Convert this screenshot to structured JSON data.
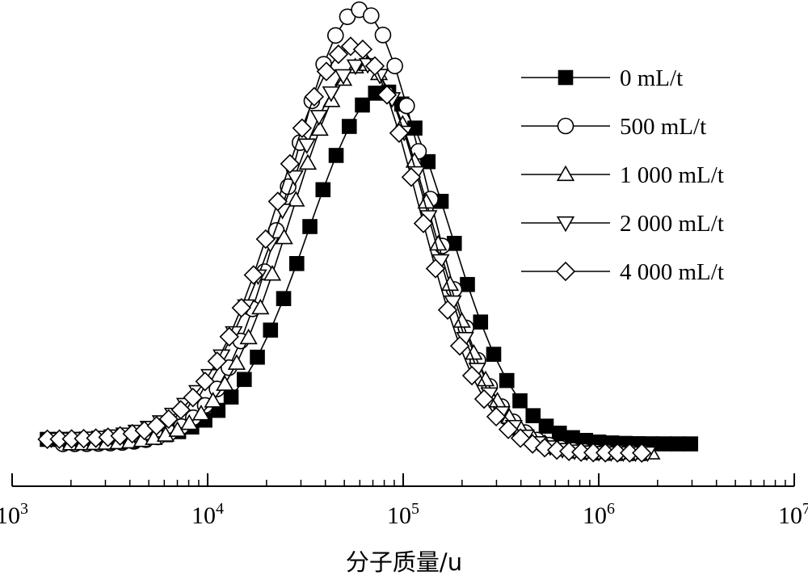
{
  "chart_data": {
    "type": "line",
    "title": "",
    "xlabel": "分子质量/u",
    "ylabel": "",
    "x_scale": "log",
    "xlim": [
      1000,
      10000000
    ],
    "ylim": [
      0,
      1
    ],
    "grid": false,
    "legend_position": "top-right",
    "x_ticks": [
      {
        "value": 1000,
        "base": "10",
        "exp": "3"
      },
      {
        "value": 10000,
        "base": "10",
        "exp": "4"
      },
      {
        "value": 100000,
        "base": "10",
        "exp": "5"
      },
      {
        "value": 1000000,
        "base": "10",
        "exp": "6"
      },
      {
        "value": 10000000,
        "base": "10",
        "exp": "7"
      }
    ],
    "series": [
      {
        "name": "0 mL/t",
        "marker": "filled-square",
        "x_start_log": 3.18,
        "x_end_log": 6.47,
        "peak_log": 4.9,
        "peak": 0.82,
        "sigma_left": 0.38,
        "sigma_right": 0.34,
        "base_left": 0.05,
        "base_right": 0.04
      },
      {
        "name": "500 mL/t",
        "marker": "open-circle",
        "x_start_log": 3.26,
        "x_end_log": 6.23,
        "peak_log": 4.78,
        "peak": 1.0,
        "sigma_left": 0.36,
        "sigma_right": 0.34,
        "base_left": 0.04,
        "base_right": 0.02
      },
      {
        "name": "1 000 mL/t",
        "marker": "open-triangle-up",
        "x_start_log": 3.3,
        "x_end_log": 6.27,
        "peak_log": 4.8,
        "peak": 0.88,
        "sigma_left": 0.37,
        "sigma_right": 0.34,
        "base_left": 0.04,
        "base_right": 0.02
      },
      {
        "name": "2 000 mL/t",
        "marker": "open-triangle-down",
        "x_start_log": 3.2,
        "x_end_log": 6.25,
        "peak_log": 4.8,
        "peak": 0.88,
        "sigma_left": 0.42,
        "sigma_right": 0.33,
        "base_left": 0.05,
        "base_right": 0.02
      },
      {
        "name": "4 000 mL/t",
        "marker": "open-diamond",
        "x_start_log": 3.18,
        "x_end_log": 6.22,
        "peak_log": 4.75,
        "peak": 0.92,
        "sigma_left": 0.39,
        "sigma_right": 0.33,
        "base_left": 0.05,
        "base_right": 0.02
      }
    ]
  },
  "colors": {
    "line": "#000000",
    "background": "#ffffff"
  }
}
